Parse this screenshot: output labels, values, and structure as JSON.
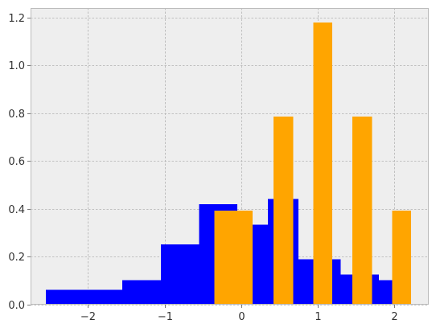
{
  "chart_data": {
    "type": "bar",
    "title": "",
    "xlabel": "",
    "ylabel": "",
    "xlim": [
      -2.75,
      2.45
    ],
    "ylim": [
      0,
      1.24
    ],
    "grid": true,
    "legend": "none",
    "x_ticks": [
      -2,
      -1,
      0,
      1,
      2
    ],
    "x_tick_labels": [
      "−2",
      "−1",
      "0",
      "1",
      "2"
    ],
    "y_ticks": [
      0.0,
      0.2,
      0.4,
      0.6,
      0.8,
      1.0,
      1.2
    ],
    "y_tick_labels": [
      "0.0",
      "0.2",
      "0.4",
      "0.6",
      "0.8",
      "1.0",
      "1.2"
    ],
    "colors": {
      "background": "#eeeeee",
      "grid": "#b2b2b2",
      "frame": "#bcbcbc",
      "series_0": "#0000ff",
      "series_1": "#ffa500"
    },
    "series": [
      {
        "color": "#0000ff",
        "bins": [
          {
            "x0": -2.55,
            "x1": -1.55,
            "value": 0.063
          },
          {
            "x0": -1.55,
            "x1": -1.05,
            "value": 0.103
          },
          {
            "x0": -1.05,
            "x1": -0.55,
            "value": 0.252
          },
          {
            "x0": -0.55,
            "x1": -0.05,
            "value": 0.42
          },
          {
            "x0": -0.05,
            "x1": 0.15,
            "value": 0.39
          },
          {
            "x0": 0.15,
            "x1": 0.35,
            "value": 0.335
          },
          {
            "x0": 0.35,
            "x1": 0.75,
            "value": 0.442
          },
          {
            "x0": 0.75,
            "x1": 1.15,
            "value": 0.19
          },
          {
            "x0": 1.15,
            "x1": 1.3,
            "value": 0.19
          },
          {
            "x0": 1.3,
            "x1": 1.6,
            "value": 0.126
          },
          {
            "x0": 1.6,
            "x1": 1.8,
            "value": 0.126
          },
          {
            "x0": 1.8,
            "x1": 2.22,
            "value": 0.103
          }
        ]
      },
      {
        "color": "#ffa500",
        "bins": [
          {
            "x0": -0.35,
            "x1": 0.15,
            "value": 0.393
          },
          {
            "x0": 0.42,
            "x1": 0.68,
            "value": 0.786
          },
          {
            "x0": 0.94,
            "x1": 1.19,
            "value": 1.18
          },
          {
            "x0": 1.45,
            "x1": 1.71,
            "value": 0.786
          },
          {
            "x0": 1.97,
            "x1": 2.22,
            "value": 0.393
          }
        ]
      }
    ]
  }
}
